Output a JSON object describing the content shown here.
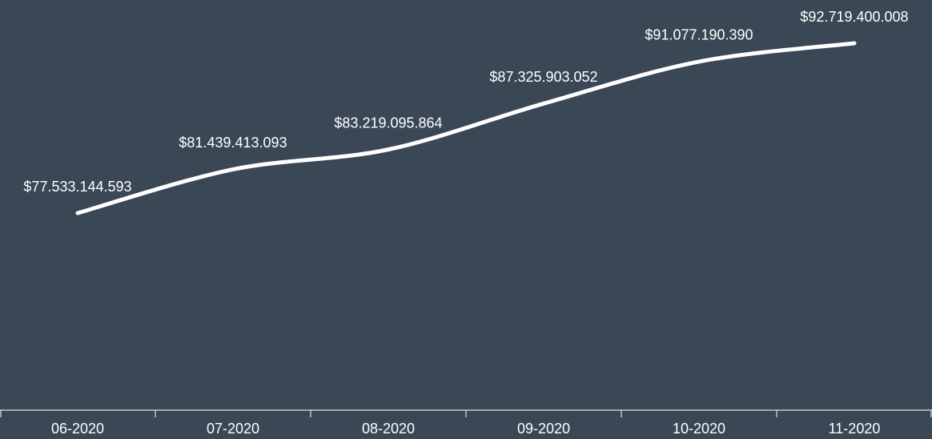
{
  "chart_data": {
    "type": "line",
    "categories": [
      "06-2020",
      "07-2020",
      "08-2020",
      "09-2020",
      "10-2020",
      "11-2020"
    ],
    "series": [
      {
        "color": "#ffffff",
        "values": [
          77533144593,
          81439413093,
          83219095864,
          87325903052,
          91077190390,
          92719400008
        ],
        "value_labels": [
          "$77.533.144.593",
          "$81.439.413.093",
          "$83.219.095.864",
          "$87.325.903.052",
          "$91.077.190.390",
          "$92.719.400.008"
        ]
      }
    ]
  }
}
